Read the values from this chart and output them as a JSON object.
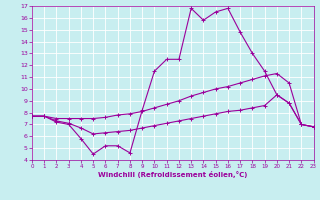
{
  "xlabel": "Windchill (Refroidissement éolien,°C)",
  "bg_color": "#c8eef0",
  "grid_color": "#ffffff",
  "line_color": "#9b009b",
  "ylim": [
    4,
    17
  ],
  "xlim": [
    0,
    23
  ],
  "yticks": [
    4,
    5,
    6,
    7,
    8,
    9,
    10,
    11,
    12,
    13,
    14,
    15,
    16,
    17
  ],
  "xticks": [
    0,
    1,
    2,
    3,
    4,
    5,
    6,
    7,
    8,
    9,
    10,
    11,
    12,
    13,
    14,
    15,
    16,
    17,
    18,
    19,
    20,
    21,
    22,
    23
  ],
  "line1_x": [
    0,
    1,
    2,
    3,
    4,
    5,
    6,
    7,
    8,
    9,
    10,
    11,
    12,
    13,
    14,
    15,
    16,
    17,
    18,
    19,
    20,
    21,
    22,
    23
  ],
  "line1_y": [
    7.7,
    7.7,
    7.2,
    7.0,
    5.8,
    4.5,
    5.2,
    5.2,
    4.6,
    8.2,
    11.5,
    12.5,
    12.5,
    16.8,
    15.8,
    16.5,
    16.8,
    14.8,
    13.0,
    11.5,
    9.5,
    8.8,
    7.0,
    6.8
  ],
  "line2_x": [
    0,
    1,
    2,
    3,
    4,
    5,
    6,
    7,
    8,
    9,
    10,
    11,
    12,
    13,
    14,
    15,
    16,
    17,
    18,
    19,
    20,
    21,
    22,
    23
  ],
  "line2_y": [
    7.7,
    7.7,
    7.5,
    7.5,
    7.5,
    7.5,
    7.6,
    7.8,
    7.9,
    8.1,
    8.4,
    8.7,
    9.0,
    9.4,
    9.7,
    10.0,
    10.2,
    10.5,
    10.8,
    11.1,
    11.3,
    10.5,
    7.0,
    6.8
  ],
  "line3_x": [
    0,
    1,
    2,
    3,
    4,
    5,
    6,
    7,
    8,
    9,
    10,
    11,
    12,
    13,
    14,
    15,
    16,
    17,
    18,
    19,
    20,
    21,
    22,
    23
  ],
  "line3_y": [
    7.7,
    7.7,
    7.3,
    7.1,
    6.7,
    6.2,
    6.3,
    6.4,
    6.5,
    6.7,
    6.9,
    7.1,
    7.3,
    7.5,
    7.7,
    7.9,
    8.1,
    8.2,
    8.4,
    8.6,
    9.5,
    8.8,
    7.0,
    6.8
  ]
}
